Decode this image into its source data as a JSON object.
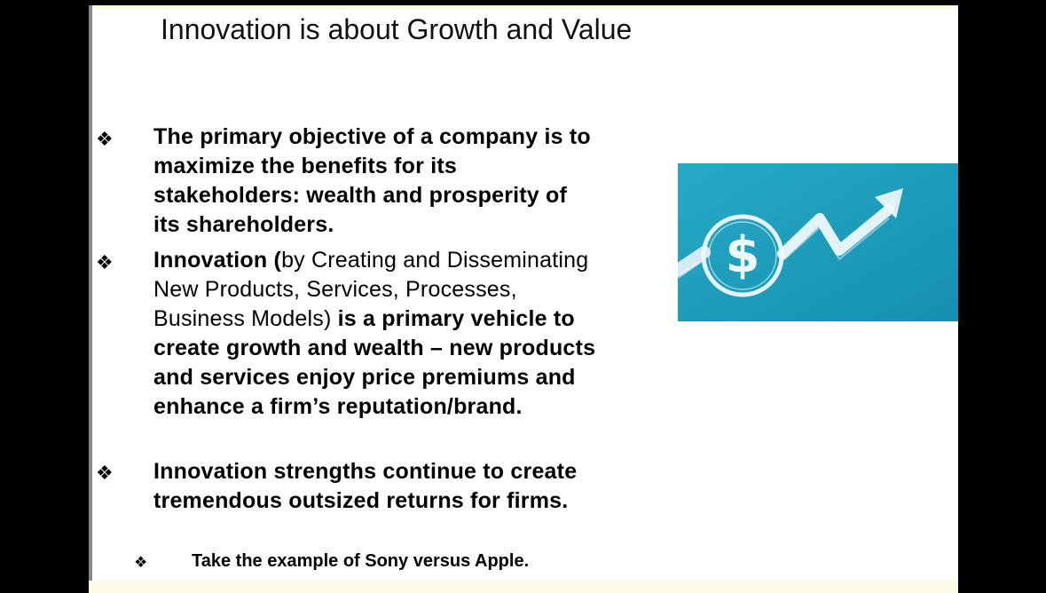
{
  "slide": {
    "title": "Innovation is about Growth and Value",
    "bullets": [
      {
        "glyph": "❖",
        "text": "The primary objective of a company is to maximize the benefits for its stakeholders: wealth and prosperity of its shareholders."
      },
      {
        "glyph": "❖",
        "lead_bold": "Innovation (",
        "middle_regular": "by Creating and Disseminating New Products, Services, Processes, Business Models)",
        "tail_bold": " is a primary vehicle to create growth and wealth – new products and services enjoy price premiums and enhance a firm’s reputation/brand."
      },
      {
        "glyph": "❖",
        "text": "Innovation strengths continue to create tremendous outsized returns for firms."
      }
    ],
    "sub_bullet": {
      "glyph": "❖",
      "text": "Take the example of Sony versus Apple."
    },
    "image": {
      "icon": "dollar-growth-arrow-icon",
      "symbol": "$",
      "background_color": "#1da2bf"
    }
  }
}
